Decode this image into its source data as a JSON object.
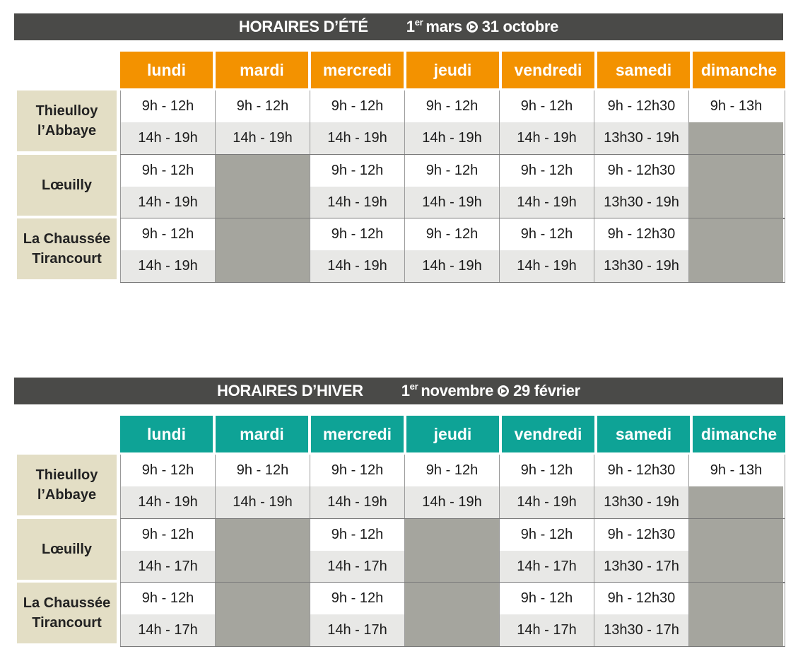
{
  "summer": {
    "title": "HORAIRES  D’ÉTÉ",
    "period_sup_num": "1",
    "period_sup": "er",
    "period_start": "mars",
    "period_end": "31 octobre",
    "header_color": "#f39200",
    "days": [
      "lundi",
      "mardi",
      "mercredi",
      "jeudi",
      "vendredi",
      "samedi",
      "dimanche"
    ],
    "locations": [
      {
        "name_line1": "Thieulloy",
        "name_line2": "l’Abbaye",
        "morning": [
          "9h - 12h",
          "9h - 12h",
          "9h - 12h",
          "9h - 12h",
          "9h - 12h",
          "9h - 12h30",
          "9h - 13h"
        ],
        "afternoon": [
          "14h - 19h",
          "14h - 19h",
          "14h - 19h",
          "14h - 19h",
          "14h - 19h",
          "13h30 - 19h",
          ""
        ]
      },
      {
        "name_line1": "Lœuilly",
        "name_line2": "",
        "morning": [
          "9h - 12h",
          "",
          "9h - 12h",
          "9h - 12h",
          "9h - 12h",
          "9h - 12h30",
          ""
        ],
        "afternoon": [
          "14h - 19h",
          "",
          "14h - 19h",
          "14h - 19h",
          "14h - 19h",
          "13h30 - 19h",
          ""
        ]
      },
      {
        "name_line1": "La Chaussée",
        "name_line2": "Tirancourt",
        "morning": [
          "9h - 12h",
          "",
          "9h - 12h",
          "9h - 12h",
          "9h - 12h",
          "9h - 12h30",
          ""
        ],
        "afternoon": [
          "14h - 19h",
          "",
          "14h - 19h",
          "14h - 19h",
          "14h - 19h",
          "13h30 - 19h",
          ""
        ]
      }
    ]
  },
  "winter": {
    "title": "HORAIRES  D’HIVER",
    "period_sup_num": "1",
    "period_sup": "er",
    "period_start": "novembre",
    "period_end": "29 février",
    "header_color": "#0ea396",
    "days": [
      "lundi",
      "mardi",
      "mercredi",
      "jeudi",
      "vendredi",
      "samedi",
      "dimanche"
    ],
    "locations": [
      {
        "name_line1": "Thieulloy",
        "name_line2": "l’Abbaye",
        "morning": [
          "9h - 12h",
          "9h - 12h",
          "9h - 12h",
          "9h - 12h",
          "9h - 12h",
          "9h - 12h30",
          "9h - 13h"
        ],
        "afternoon": [
          "14h - 19h",
          "14h - 19h",
          "14h - 19h",
          "14h - 19h",
          "14h - 19h",
          "13h30 - 19h",
          ""
        ]
      },
      {
        "name_line1": "Lœuilly",
        "name_line2": "",
        "morning": [
          "9h - 12h",
          "",
          "9h - 12h",
          "",
          "9h - 12h",
          "9h - 12h30",
          ""
        ],
        "afternoon": [
          "14h - 17h",
          "",
          "14h - 17h",
          "",
          "14h - 17h",
          "13h30 - 17h",
          ""
        ]
      },
      {
        "name_line1": "La Chaussée",
        "name_line2": "Tirancourt",
        "morning": [
          "9h - 12h",
          "",
          "9h - 12h",
          "",
          "9h - 12h",
          "9h - 12h30",
          ""
        ],
        "afternoon": [
          "14h - 17h",
          "",
          "14h - 17h",
          "",
          "14h - 17h",
          "13h30 - 17h",
          ""
        ]
      }
    ]
  },
  "colors": {
    "banner_bg": "#4a4a48",
    "closed_cell": "#a5a59e",
    "location_bg": "#e3dec5",
    "afternoon_row_bg": "#e8e8e6"
  },
  "icons": {
    "period_arrow": "circled-arrow-icon"
  }
}
